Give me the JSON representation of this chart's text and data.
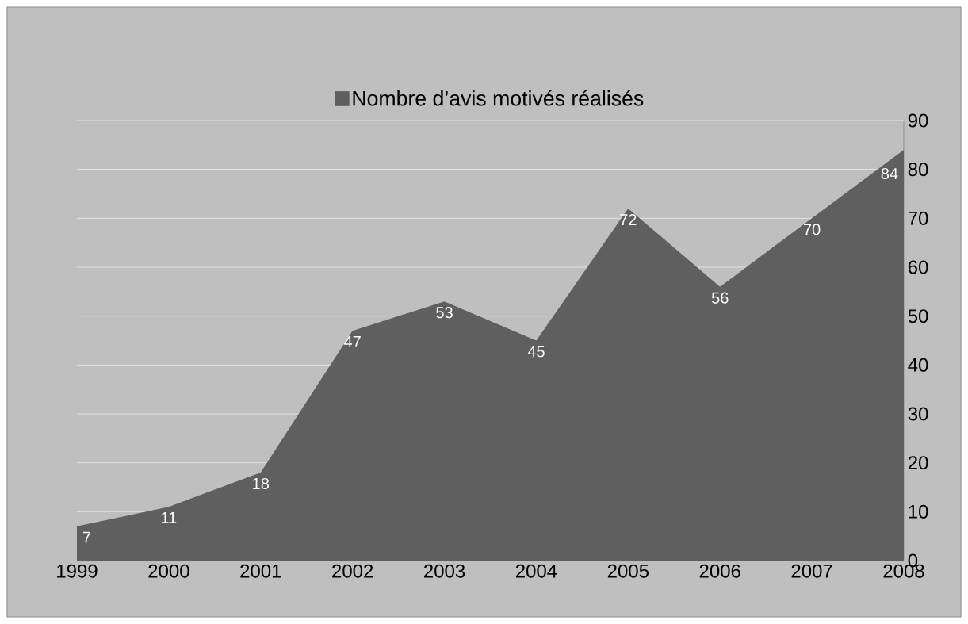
{
  "chart_data": {
    "type": "area",
    "categories": [
      "1999",
      "2000",
      "2001",
      "2002",
      "2003",
      "2004",
      "2005",
      "2006",
      "2007",
      "2008"
    ],
    "series": [
      {
        "name": "Nombre d’avis motivés réalisés",
        "color": "#5f5f5f",
        "values": [
          7,
          11,
          18,
          47,
          53,
          45,
          72,
          56,
          70,
          84
        ]
      }
    ],
    "ylim": [
      0,
      90
    ],
    "yticks": [
      0,
      10,
      20,
      30,
      40,
      50,
      60,
      70,
      80,
      90
    ],
    "grid": "y",
    "legend": "top",
    "data_labels": true
  }
}
